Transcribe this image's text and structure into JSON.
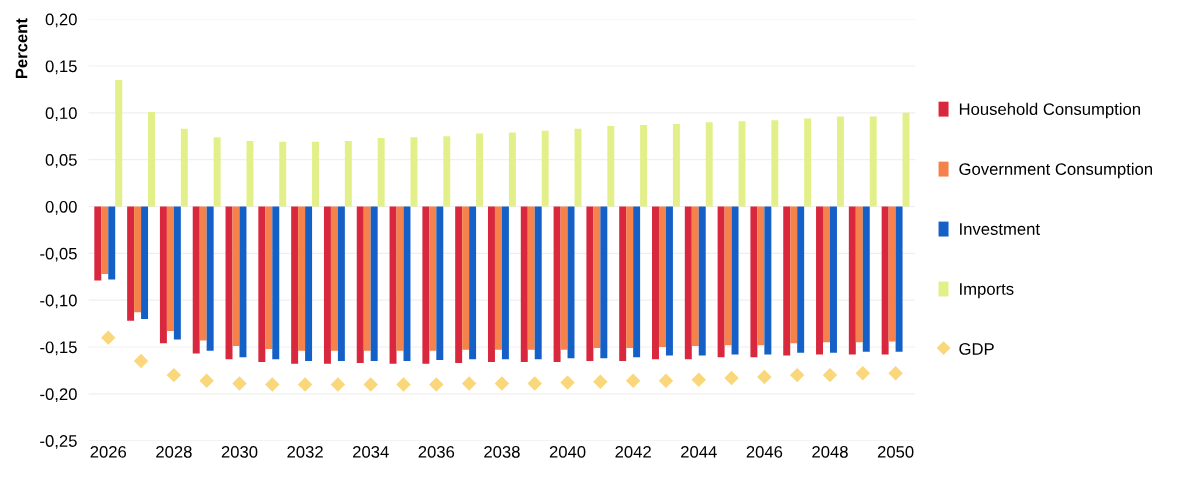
{
  "chart_data": {
    "type": "bar",
    "ylabel": "Percent",
    "categories": [
      "2026",
      null,
      "2028",
      null,
      "2030",
      null,
      "2032",
      null,
      "2034",
      null,
      "2036",
      null,
      "2038",
      null,
      "2040",
      null,
      "2042",
      null,
      "2044",
      null,
      "2046",
      null,
      "2048",
      null,
      "2050"
    ],
    "series": [
      {
        "name": "Household Consumption",
        "color": "#d9283e",
        "values": [
          -0.079,
          -0.122,
          -0.146,
          -0.157,
          -0.163,
          -0.166,
          -0.168,
          -0.168,
          -0.167,
          -0.168,
          -0.168,
          -0.167,
          -0.166,
          -0.166,
          -0.166,
          -0.165,
          -0.165,
          -0.163,
          -0.163,
          -0.161,
          -0.161,
          -0.159,
          -0.158,
          -0.158,
          -0.158
        ]
      },
      {
        "name": "Government Consumption",
        "color": "#f4824a",
        "values": [
          -0.072,
          -0.113,
          -0.133,
          -0.143,
          -0.149,
          -0.152,
          -0.154,
          -0.154,
          -0.154,
          -0.154,
          -0.154,
          -0.153,
          -0.153,
          -0.153,
          -0.153,
          -0.151,
          -0.151,
          -0.15,
          -0.149,
          -0.148,
          -0.148,
          -0.146,
          -0.145,
          -0.145,
          -0.144
        ]
      },
      {
        "name": "Investment",
        "color": "#1560c6",
        "values": [
          -0.078,
          -0.12,
          -0.142,
          -0.154,
          -0.161,
          -0.163,
          -0.165,
          -0.165,
          -0.165,
          -0.165,
          -0.164,
          -0.163,
          -0.163,
          -0.163,
          -0.162,
          -0.162,
          -0.161,
          -0.159,
          -0.159,
          -0.158,
          -0.158,
          -0.156,
          -0.156,
          -0.155,
          -0.155
        ]
      },
      {
        "name": "Imports",
        "color": "#e3f08a",
        "values": [
          0.135,
          0.101,
          0.083,
          0.074,
          0.07,
          0.069,
          0.069,
          0.07,
          0.073,
          0.074,
          0.075,
          0.078,
          0.079,
          0.081,
          0.083,
          0.086,
          0.087,
          0.088,
          0.09,
          0.091,
          0.092,
          0.094,
          0.096,
          0.096,
          0.1
        ]
      },
      {
        "name": "GDP",
        "type": "scatter",
        "marker": "diamond",
        "color": "#f9d77a",
        "values": [
          -0.14,
          -0.165,
          -0.18,
          -0.186,
          -0.189,
          -0.19,
          -0.19,
          -0.19,
          -0.19,
          -0.19,
          -0.19,
          -0.189,
          -0.189,
          -0.189,
          -0.188,
          -0.187,
          -0.186,
          -0.186,
          -0.185,
          -0.183,
          -0.182,
          -0.18,
          -0.18,
          -0.178,
          -0.178
        ]
      }
    ],
    "ylim": [
      -0.25,
      0.2
    ],
    "yticks": [
      {
        "value": -0.25,
        "label": "-0,25"
      },
      {
        "value": -0.2,
        "label": "-0,20"
      },
      {
        "value": -0.15,
        "label": "-0,15"
      },
      {
        "value": -0.1,
        "label": "-0,10"
      },
      {
        "value": -0.05,
        "label": "-0,05"
      },
      {
        "value": 0,
        "label": "0,00"
      },
      {
        "value": 0.05,
        "label": "0,05"
      },
      {
        "value": 0.1,
        "label": "0,10"
      },
      {
        "value": 0.15,
        "label": "0,15"
      },
      {
        "value": 0.2,
        "label": "0,20"
      }
    ],
    "grid": "y",
    "legend": "right"
  }
}
